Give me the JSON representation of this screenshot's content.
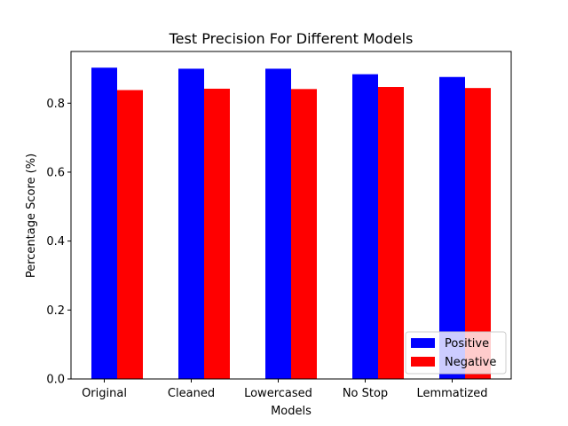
{
  "chart_data": {
    "type": "bar",
    "title": "Test Precision For Different Models",
    "xlabel": "Models",
    "ylabel": "Percentage Score (%)",
    "categories": [
      "Original",
      "Cleaned",
      "Lowercased",
      "No Stop",
      "Lemmatized"
    ],
    "series": [
      {
        "name": "Positive",
        "color": "#0000ff",
        "values": [
          0.903,
          0.9,
          0.9,
          0.884,
          0.876
        ]
      },
      {
        "name": "Negative",
        "color": "#ff0000",
        "values": [
          0.838,
          0.842,
          0.841,
          0.847,
          0.844
        ]
      }
    ],
    "ylim": [
      0,
      0.95
    ],
    "yticks": [
      "0.0",
      "0.2",
      "0.4",
      "0.6",
      "0.8"
    ],
    "grid": false,
    "legend_position": "lower-right"
  }
}
